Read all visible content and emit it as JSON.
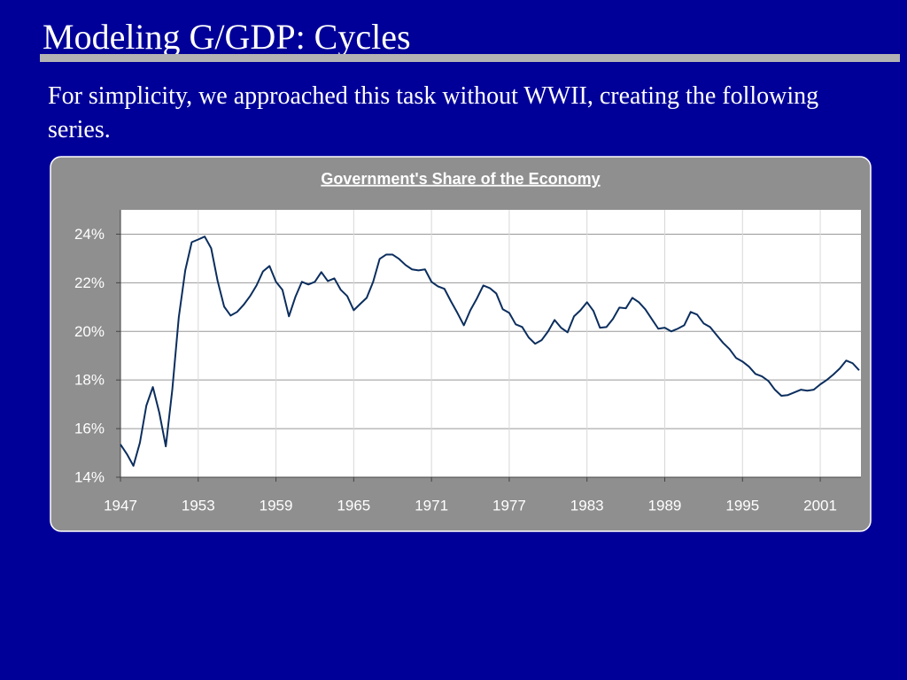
{
  "slide": {
    "title": "Modeling G/GDP: Cycles",
    "body": "For simplicity, we approached this task without WWII, creating the following series."
  },
  "chart_data": {
    "type": "line",
    "title": "Government's Share of the Economy",
    "color": "#0b2e5e",
    "grid": true,
    "x": [
      1947,
      1947.5,
      1948,
      1948.5,
      1949,
      1949.5,
      1950,
      1950.5,
      1951,
      1951.5,
      1952,
      1952.5,
      1953,
      1953.5,
      1954,
      1954.5,
      1955,
      1955.5,
      1956,
      1956.5,
      1957,
      1957.5,
      1958,
      1958.5,
      1959,
      1959.5,
      1960,
      1960.5,
      1961,
      1961.5,
      1962,
      1962.5,
      1963,
      1963.5,
      1964,
      1964.5,
      1965,
      1965.5,
      1966,
      1966.5,
      1967,
      1967.5,
      1968,
      1968.5,
      1969,
      1969.5,
      1970,
      1970.5,
      1971,
      1971.5,
      1972,
      1972.5,
      1973,
      1973.5,
      1974,
      1974.5,
      1975,
      1975.5,
      1976,
      1976.5,
      1977,
      1977.5,
      1978,
      1978.5,
      1979,
      1979.5,
      1980,
      1980.5,
      1981,
      1981.5,
      1982,
      1982.5,
      1983,
      1983.5,
      1984,
      1984.5,
      1985,
      1985.5,
      1986,
      1986.5,
      1987,
      1987.5,
      1988,
      1988.5,
      1989,
      1989.5,
      1990,
      1990.5,
      1991,
      1991.5,
      1992,
      1992.5,
      1993,
      1993.5,
      1994,
      1994.5,
      1995,
      1995.5,
      1996,
      1996.5,
      1997,
      1997.5,
      1998,
      1998.5,
      1999,
      1999.5,
      2000,
      2000.5,
      2001,
      2001.5,
      2002,
      2002.5,
      2003,
      2003.5,
      2004
    ],
    "values": [
      15.35,
      14.95,
      14.47,
      15.42,
      16.95,
      17.71,
      16.65,
      15.27,
      17.6,
      20.58,
      22.51,
      23.67,
      23.78,
      23.9,
      23.42,
      22.07,
      21.02,
      20.65,
      20.8,
      21.09,
      21.45,
      21.89,
      22.47,
      22.69,
      22.04,
      21.71,
      20.62,
      21.42,
      22.04,
      21.93,
      22.04,
      22.44,
      22.07,
      22.18,
      21.71,
      21.45,
      20.87,
      21.13,
      21.38,
      22.04,
      22.98,
      23.16,
      23.16,
      22.98,
      22.73,
      22.55,
      22.51,
      22.55,
      22.04,
      21.85,
      21.75,
      21.24,
      20.76,
      20.25,
      20.87,
      21.35,
      21.89,
      21.78,
      21.56,
      20.91,
      20.76,
      20.29,
      20.18,
      19.75,
      19.49,
      19.64,
      20.0,
      20.47,
      20.15,
      19.96,
      20.62,
      20.87,
      21.2,
      20.84,
      20.15,
      20.18,
      20.51,
      20.98,
      20.95,
      21.38,
      21.2,
      20.91,
      20.51,
      20.11,
      20.15,
      20.0,
      20.11,
      20.25,
      20.8,
      20.69,
      20.33,
      20.18,
      19.85,
      19.53,
      19.27,
      18.91,
      18.76,
      18.55,
      18.25,
      18.15,
      17.96,
      17.6,
      17.35,
      17.38,
      17.49,
      17.6,
      17.56,
      17.6,
      17.82,
      18.0,
      18.22,
      18.47,
      18.8,
      18.69,
      18.4
    ],
    "xlim": [
      1947,
      2004.14
    ],
    "xticks": [
      1947,
      1953,
      1959,
      1965,
      1971,
      1977,
      1983,
      1989,
      1995,
      2001
    ],
    "ylim": [
      14,
      25
    ],
    "yticks": [
      {
        "value": 14,
        "label": "14%"
      },
      {
        "value": 16,
        "label": "16%"
      },
      {
        "value": 18,
        "label": "18%"
      },
      {
        "value": 20,
        "label": "20%"
      },
      {
        "value": 22,
        "label": "22%"
      },
      {
        "value": 24,
        "label": "24%"
      }
    ]
  }
}
